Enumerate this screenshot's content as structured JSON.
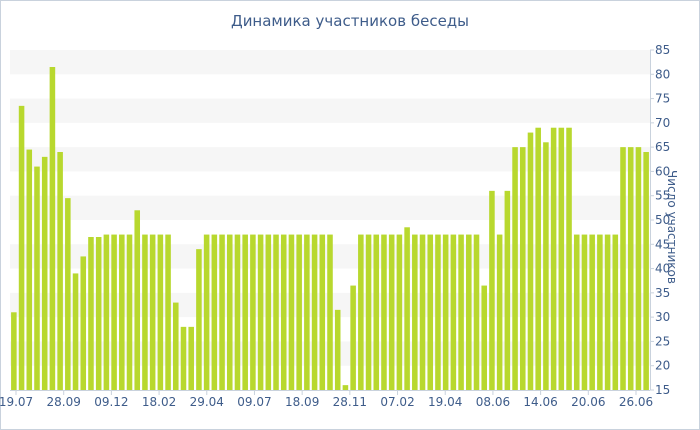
{
  "chart_data": {
    "type": "bar",
    "title": "Динамика участников беседы",
    "xlabel": "",
    "ylabel": "Число участников",
    "ylim": [
      15,
      85
    ],
    "yticks": [
      15,
      20,
      25,
      30,
      35,
      40,
      45,
      50,
      55,
      60,
      65,
      70,
      75,
      80,
      85
    ],
    "grid": true,
    "bar_color": "#b8d82e",
    "band_color": "#f6f6f6",
    "axis_text_color": "#3e5c8a",
    "xtick_labels": [
      "19.07",
      "28.09",
      "09.12",
      "18.02",
      "29.04",
      "09.07",
      "18.09",
      "28.11",
      "07.02",
      "19.04",
      "08.06",
      "14.06",
      "20.06",
      "26.06"
    ],
    "values": [
      31,
      73.5,
      64.5,
      61,
      63,
      81.5,
      64,
      54.5,
      39,
      42.5,
      46.5,
      46.5,
      47,
      47,
      47,
      47,
      52,
      47,
      47,
      47,
      47,
      33,
      28,
      28,
      44,
      47,
      47,
      47,
      47,
      47,
      47,
      47,
      47,
      47,
      47,
      47,
      47,
      47,
      47,
      47,
      47,
      47,
      31.5,
      16,
      36.5,
      47,
      47,
      47,
      47,
      47,
      47,
      48.5,
      47,
      47,
      47,
      47,
      47,
      47,
      47,
      47,
      47,
      36.5,
      56,
      47,
      56,
      65,
      65,
      68,
      69,
      66,
      69,
      69,
      69,
      47,
      47,
      47,
      47,
      47,
      47,
      65,
      65,
      65,
      64
    ]
  }
}
